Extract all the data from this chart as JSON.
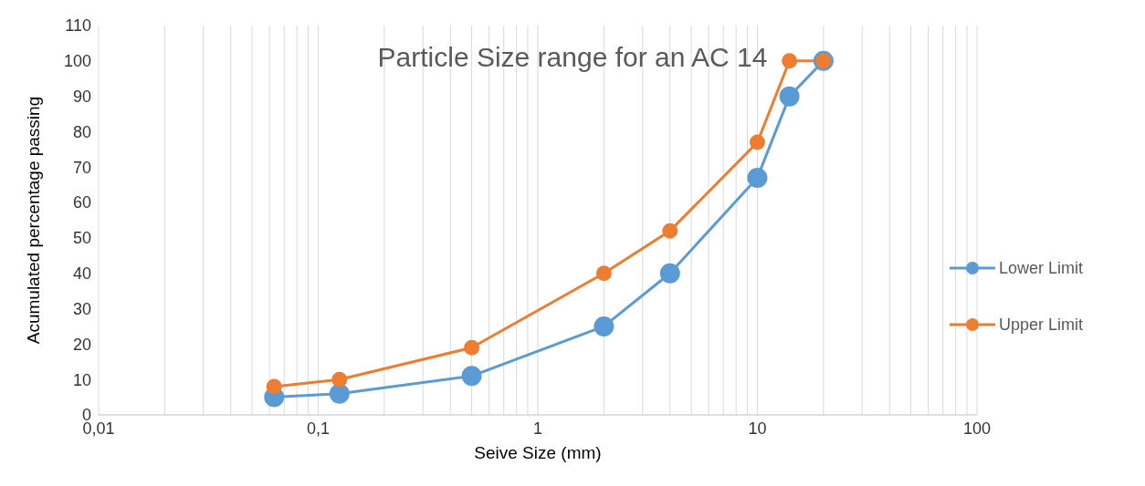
{
  "chart_data": {
    "type": "line",
    "title": "Particle Size range for an AC 14",
    "xlabel": "Seive Size (mm)",
    "ylabel": "Acumulated percentage passing",
    "log": "x",
    "xlim": [
      0.01,
      100
    ],
    "xticks": [
      {
        "value": 0.01,
        "label": "0,01"
      },
      {
        "value": 0.02,
        "label": null
      },
      {
        "value": 0.03,
        "label": null
      },
      {
        "value": 0.04,
        "label": null
      },
      {
        "value": 0.05,
        "label": null
      },
      {
        "value": 0.06,
        "label": null
      },
      {
        "value": 0.07,
        "label": null
      },
      {
        "value": 0.08,
        "label": null
      },
      {
        "value": 0.09,
        "label": null
      },
      {
        "value": 0.1,
        "label": "0,1"
      },
      {
        "value": 0.2,
        "label": null
      },
      {
        "value": 0.3,
        "label": null
      },
      {
        "value": 0.4,
        "label": null
      },
      {
        "value": 0.5,
        "label": null
      },
      {
        "value": 0.6,
        "label": null
      },
      {
        "value": 0.7,
        "label": null
      },
      {
        "value": 0.8,
        "label": null
      },
      {
        "value": 0.9,
        "label": null
      },
      1,
      {
        "value": 2,
        "label": null
      },
      {
        "value": 3,
        "label": null
      },
      {
        "value": 4,
        "label": null
      },
      {
        "value": 5,
        "label": null
      },
      {
        "value": 6,
        "label": null
      },
      {
        "value": 7,
        "label": null
      },
      {
        "value": 8,
        "label": null
      },
      {
        "value": 9,
        "label": null
      },
      10,
      {
        "value": 20,
        "label": null
      },
      {
        "value": 30,
        "label": null
      },
      {
        "value": 40,
        "label": null
      },
      {
        "value": 50,
        "label": null
      },
      {
        "value": 60,
        "label": null
      },
      {
        "value": 70,
        "label": null
      },
      {
        "value": 80,
        "label": null
      },
      {
        "value": 90,
        "label": null
      },
      100
    ],
    "ylim": [
      0,
      110
    ],
    "yticks": [
      0,
      10,
      20,
      30,
      40,
      50,
      60,
      70,
      80,
      90,
      100,
      110
    ],
    "grid": "x",
    "legend": "right",
    "marker": "circle",
    "line_style": "solid",
    "series": [
      {
        "name": "Lower Limit",
        "color": "#5b9bd5",
        "x": [
          0.063,
          0.125,
          0.5,
          2,
          4,
          10,
          14,
          20
        ],
        "values": [
          5,
          6,
          11,
          25,
          40,
          67,
          90,
          100
        ]
      },
      {
        "name": "Upper Limit",
        "color": "#ed7d31",
        "x": [
          0.063,
          0.125,
          0.5,
          2,
          4,
          10,
          14,
          20
        ],
        "values": [
          8,
          10,
          19,
          40,
          52,
          77,
          100,
          100
        ]
      }
    ]
  }
}
